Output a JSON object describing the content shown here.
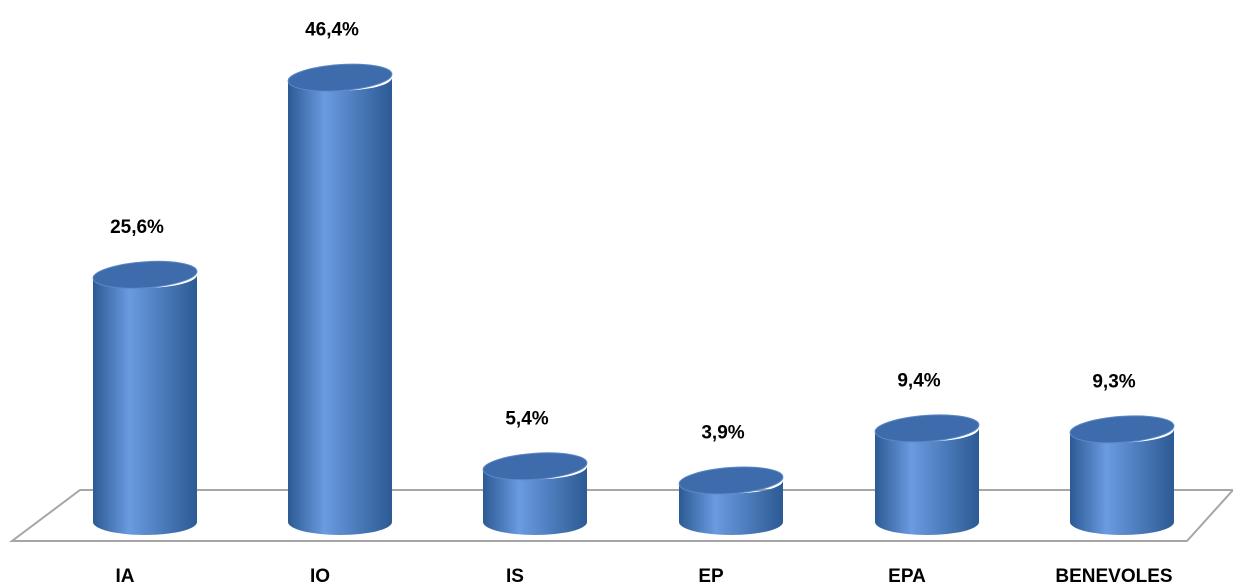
{
  "chart_data": {
    "type": "bar",
    "style": "3d-cylinder",
    "categories": [
      "IA",
      "IO",
      "IS",
      "EP",
      "EPA",
      "BENEVOLES"
    ],
    "values": [
      25.6,
      46.4,
      5.4,
      3.9,
      9.4,
      9.3
    ],
    "value_labels": [
      "25,6%",
      "46,4%",
      "5,4%",
      "3,9%",
      "9,4%",
      "9,3%"
    ],
    "unit": "%",
    "title": "",
    "xlabel": "",
    "ylabel": "",
    "ylim": [
      0,
      50
    ],
    "grid": false,
    "legend": "none",
    "colors": {
      "bar_main": "#4f81bd",
      "bar_light": "#6a9be0",
      "bar_dark": "#2c5a94",
      "bar_top": "#3d6bab",
      "floor_line": "#a6a6a6"
    }
  }
}
